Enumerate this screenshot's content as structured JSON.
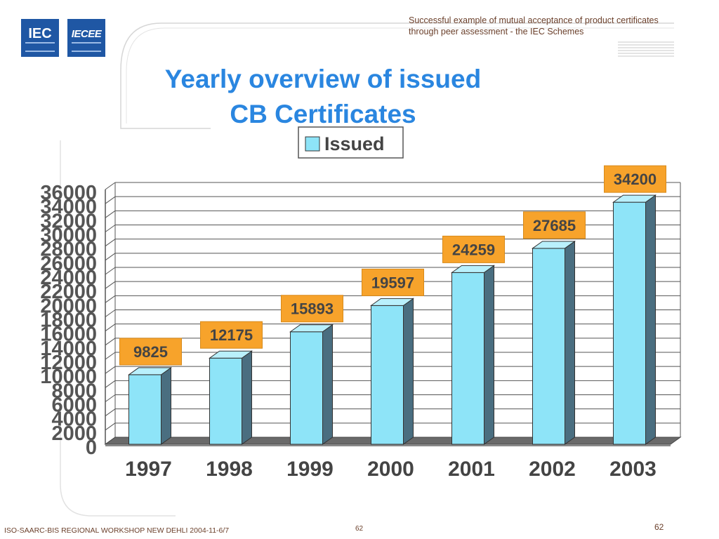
{
  "header": {
    "line1": "Successful example of mutual acceptance of product certificates",
    "line2": "through peer assessment  - the IEC Schemes"
  },
  "logos": {
    "iec": "IEC",
    "iecee": "IECEE"
  },
  "footer": {
    "left": "ISO-SAARC-BIS REGIONAL WORKSHOP NEW DEHLI 2004-11-6/7",
    "mid": "62",
    "right": "62"
  },
  "colors": {
    "title": "#2a86e0",
    "bar_front": "#8ee4f8",
    "bar_side": "#4a6e80",
    "label_bg": "#f7a32b",
    "floor": "#6a6a6a"
  },
  "chart_data": {
    "type": "bar",
    "title_line1": "Yearly overview of issued",
    "title_line2": "CB Certificates",
    "legend": "Issued",
    "categories": [
      "1997",
      "1998",
      "1999",
      "2000",
      "2001",
      "2002",
      "2003"
    ],
    "series": [
      {
        "name": "Issued",
        "values": [
          9825,
          12175,
          15893,
          19597,
          24259,
          27685,
          34200
        ]
      }
    ],
    "ylim": [
      0,
      36000
    ],
    "yticks": [
      "0",
      "2000",
      "4000",
      "6000",
      "8000",
      "10000",
      "12000",
      "14000",
      "16000",
      "18000",
      "20000",
      "22000",
      "24000",
      "26000",
      "28000",
      "30000",
      "32000",
      "34000",
      "36000"
    ],
    "grid": true,
    "legend_position": "top-center"
  }
}
